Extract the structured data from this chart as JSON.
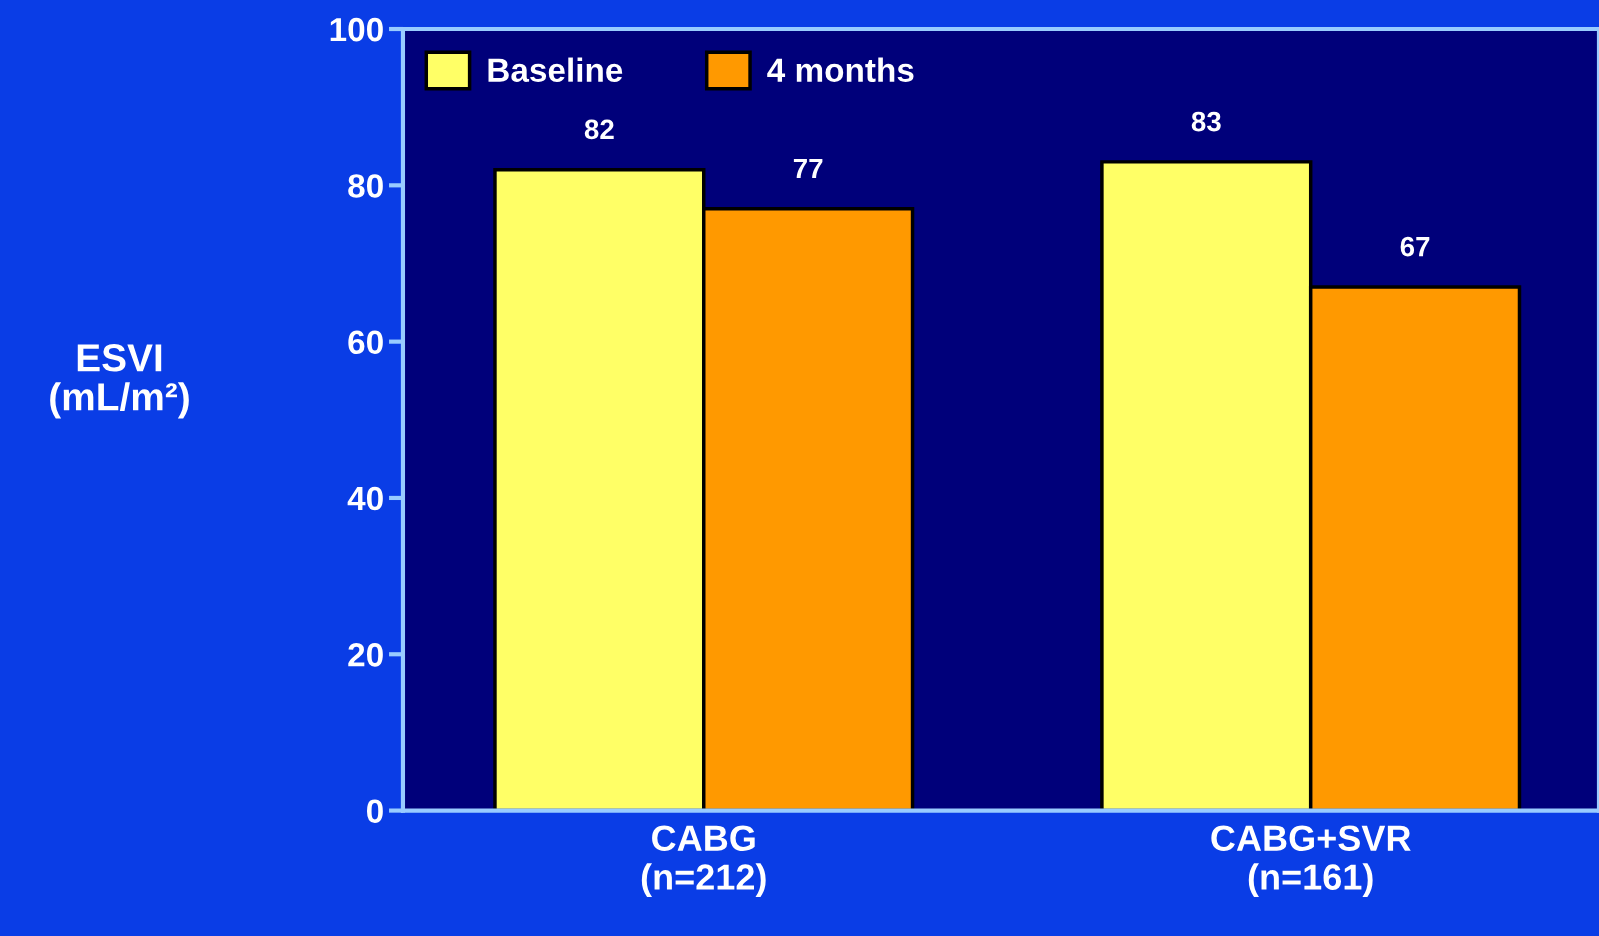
{
  "chart_data": {
    "type": "bar",
    "ylabel": "ESVI\n(mL/m²)",
    "categories": [
      "CABG\n(n=212)",
      "CABG+SVR\n(n=161)"
    ],
    "series": [
      {
        "name": "Baseline",
        "color": "#ffff66",
        "values": [
          82,
          83
        ]
      },
      {
        "name": "4 months",
        "color": "#ff9900",
        "values": [
          77,
          67
        ]
      }
    ],
    "ylim": [
      0,
      100
    ],
    "yticks": [
      0,
      20,
      40,
      60,
      80,
      100
    ],
    "grid": false,
    "legend": "top left",
    "data_labels": true
  }
}
